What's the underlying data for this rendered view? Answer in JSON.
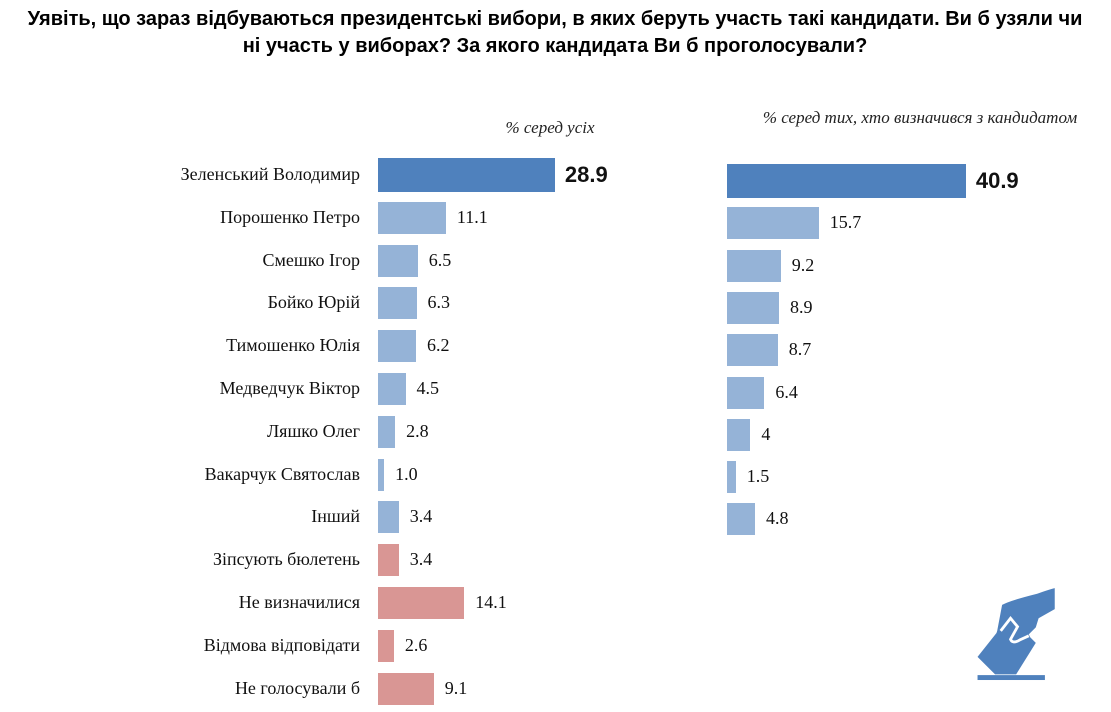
{
  "chart_data": [
    {
      "type": "bar",
      "orientation": "horizontal",
      "title": "Уявіть, що зараз відбуваються президентські вибори, в яких беруть участь такі кандидати. Ви б узяли чи ні участь у виборах? За якого кандидата Ви б проголосували?",
      "subtitle": "% серед усіх",
      "categories": [
        "Зеленський Володимир",
        "Порошенко Петро",
        "Смешко Ігор",
        "Бойко Юрій",
        "Тимошенко Юлія",
        "Медведчук Віктор",
        "Ляшко Олег",
        "Вакарчук Святослав",
        "Інший",
        "Зіпсують бюлетень",
        "Не визначилися",
        "Відмова відповідати",
        "Не голосували б"
      ],
      "values": [
        28.9,
        11.1,
        6.5,
        6.3,
        6.2,
        4.5,
        2.8,
        1.0,
        3.4,
        3.4,
        14.1,
        2.6,
        9.1
      ],
      "labels": [
        "28.9",
        "11.1",
        "6.5",
        "6.3",
        "6.2",
        "4.5",
        "2.8",
        "1.0",
        "3.4",
        "3.4",
        "14.1",
        "2.6",
        "9.1"
      ],
      "bar_colors": [
        "#4F81BD",
        "#95B3D7",
        "#95B3D7",
        "#95B3D7",
        "#95B3D7",
        "#95B3D7",
        "#95B3D7",
        "#95B3D7",
        "#95B3D7",
        "#D99694",
        "#D99694",
        "#D99694",
        "#D99694"
      ],
      "grid": false
    },
    {
      "type": "bar",
      "orientation": "horizontal",
      "subtitle": "% серед тих, хто визначився з кандидатом",
      "categories": [
        "Зеленський Володимир",
        "Порошенко Петро",
        "Смешко Ігор",
        "Бойко Юрій",
        "Тимошенко Юлія",
        "Медведчук Віктор",
        "Ляшко Олег",
        "Вакарчук Святослав",
        "Інший"
      ],
      "values": [
        40.9,
        15.7,
        9.2,
        8.9,
        8.7,
        6.4,
        4,
        1.5,
        4.8
      ],
      "labels": [
        "40.9",
        "15.7",
        "9.2",
        "8.9",
        "8.7",
        "6.4",
        "4",
        "1.5",
        "4.8"
      ],
      "bar_colors": [
        "#4F81BD",
        "#95B3D7",
        "#95B3D7",
        "#95B3D7",
        "#95B3D7",
        "#95B3D7",
        "#95B3D7",
        "#95B3D7",
        "#95B3D7"
      ],
      "grid": false
    }
  ],
  "icon": {
    "name": "ballot-box-hand-icon",
    "color": "#4F81BD"
  }
}
